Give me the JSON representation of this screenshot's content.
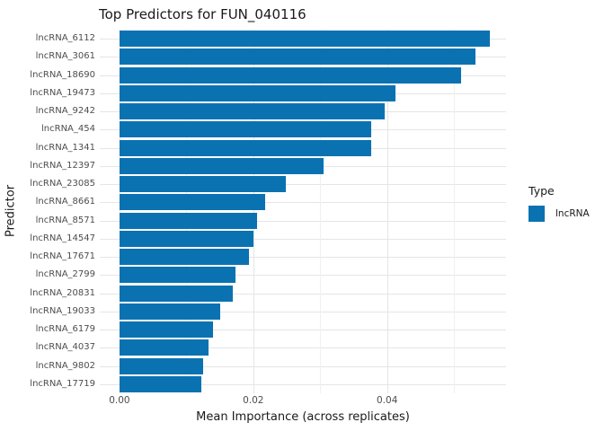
{
  "title": "Top Predictors for FUN_040116",
  "axes": {
    "x_title": "Mean Importance (across replicates)",
    "y_title": "Predictor"
  },
  "legend": {
    "title": "Type",
    "items": [
      {
        "label": "lncRNA",
        "color": "#0b72b2"
      }
    ]
  },
  "colors": {
    "bar_fill": "#0b72b2",
    "grid_major": "#e5e5e5",
    "grid_minor": "#f0f0f0",
    "tick_label": "#4d4d4d",
    "text": "#1a1a1a",
    "background": "#ffffff"
  },
  "chart_data": {
    "type": "bar",
    "orientation": "horizontal",
    "title": "Top Predictors for FUN_040116",
    "xlabel": "Mean Importance (across replicates)",
    "ylabel": "Predictor",
    "legend_title": "Type",
    "legend_entries": [
      "lncRNA"
    ],
    "legend_position": "right",
    "grid": true,
    "xlim": [
      0,
      0.058
    ],
    "xticks": [
      0,
      0.02,
      0.04
    ],
    "xtick_labels": [
      "0.00",
      "0.02",
      "0.04"
    ],
    "minor_xticks": [
      0.01,
      0.03,
      0.05
    ],
    "categories": [
      "lncRNA_6112",
      "lncRNA_3061",
      "lncRNA_18690",
      "lncRNA_19473",
      "lncRNA_9242",
      "lncRNA_454",
      "lncRNA_1341",
      "lncRNA_12397",
      "lncRNA_23085",
      "lncRNA_8661",
      "lncRNA_8571",
      "lncRNA_14547",
      "lncRNA_17671",
      "lncRNA_2799",
      "lncRNA_20831",
      "lncRNA_19033",
      "lncRNA_6179",
      "lncRNA_4037",
      "lncRNA_9802",
      "lncRNA_17719"
    ],
    "values": [
      0.0554,
      0.0532,
      0.051,
      0.0413,
      0.0396,
      0.0376,
      0.0376,
      0.0305,
      0.0249,
      0.0218,
      0.0205,
      0.02,
      0.0193,
      0.0174,
      0.0169,
      0.0151,
      0.014,
      0.0133,
      0.0125,
      0.0122
    ]
  }
}
